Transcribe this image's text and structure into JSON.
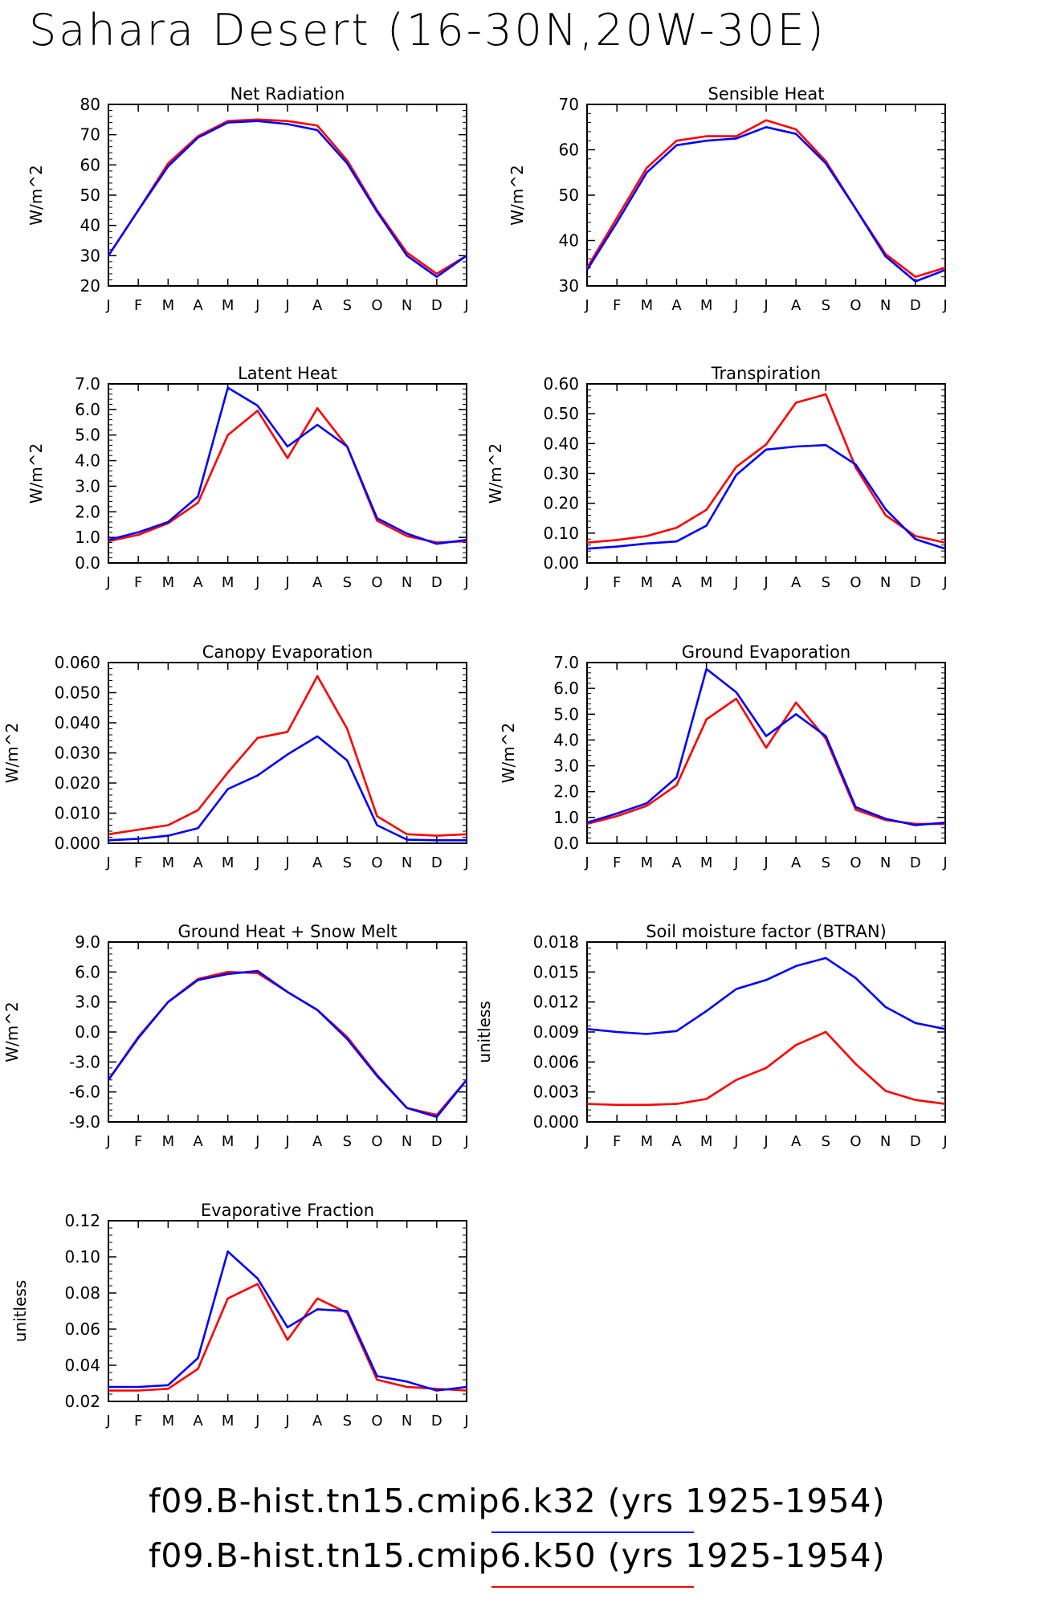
{
  "title": "Sahara Desert (16-30N,20W-30E)",
  "legend": [
    {
      "label": "f09.B-hist.tn15.cmip6.k32 (yrs 1925-1954)",
      "color": "#0000ff"
    },
    {
      "label": "f09.B-hist.tn15.cmip6.k50 (yrs 1925-1954)",
      "color": "#ff0000"
    }
  ],
  "chart_data": [
    {
      "type": "line",
      "title": "Net Radiation",
      "xlabel": "",
      "ylabel": "W/m^2",
      "categories": [
        "J",
        "F",
        "M",
        "A",
        "M",
        "J",
        "J",
        "A",
        "S",
        "O",
        "N",
        "D",
        "J"
      ],
      "ylim": [
        20,
        80
      ],
      "yticks": [
        "20",
        "30",
        "40",
        "50",
        "60",
        "70",
        "80"
      ],
      "series": [
        {
          "color": "#ff0000",
          "values": [
            30,
            45,
            60.5,
            69.5,
            74.5,
            75,
            74.5,
            73,
            61.5,
            45,
            31,
            24,
            30
          ]
        },
        {
          "color": "#0000ff",
          "values": [
            30,
            45,
            59.5,
            69,
            74,
            74.5,
            73.5,
            71.5,
            60.5,
            44.5,
            30,
            23,
            30
          ]
        }
      ]
    },
    {
      "type": "line",
      "title": "Sensible Heat",
      "xlabel": "",
      "ylabel": "W/m^2",
      "categories": [
        "J",
        "F",
        "M",
        "A",
        "M",
        "J",
        "J",
        "A",
        "S",
        "O",
        "N",
        "D",
        "J"
      ],
      "ylim": [
        30,
        70
      ],
      "yticks": [
        "30",
        "40",
        "50",
        "60",
        "70"
      ],
      "series": [
        {
          "color": "#ff0000",
          "values": [
            34,
            45,
            56,
            62,
            63,
            63,
            66.5,
            64.5,
            57.5,
            47,
            37,
            32,
            34
          ]
        },
        {
          "color": "#0000ff",
          "values": [
            33.5,
            44,
            55,
            61,
            62,
            62.5,
            65,
            63.5,
            57,
            47,
            36.5,
            31,
            33.5
          ]
        }
      ]
    },
    {
      "type": "line",
      "title": "Latent Heat",
      "xlabel": "",
      "ylabel": "W/m^2",
      "categories": [
        "J",
        "F",
        "M",
        "A",
        "M",
        "J",
        "J",
        "A",
        "S",
        "O",
        "N",
        "D",
        "J"
      ],
      "ylim": [
        0,
        7
      ],
      "yticks": [
        "0.0",
        "1.0",
        "2.0",
        "3.0",
        "4.0",
        "5.0",
        "6.0",
        "7.0"
      ],
      "series": [
        {
          "color": "#ff0000",
          "values": [
            0.85,
            1.1,
            1.55,
            2.35,
            5.0,
            5.95,
            4.1,
            6.05,
            4.55,
            1.65,
            1.05,
            0.8,
            0.85
          ]
        },
        {
          "color": "#0000ff",
          "values": [
            0.9,
            1.2,
            1.6,
            2.6,
            6.85,
            6.15,
            4.55,
            5.4,
            4.55,
            1.75,
            1.15,
            0.75,
            0.9
          ]
        }
      ]
    },
    {
      "type": "line",
      "title": "Transpiration",
      "xlabel": "",
      "ylabel": "W/m^2",
      "categories": [
        "J",
        "F",
        "M",
        "A",
        "M",
        "J",
        "J",
        "A",
        "S",
        "O",
        "N",
        "D",
        "J"
      ],
      "ylim": [
        0,
        0.6
      ],
      "yticks": [
        "0.00",
        "0.10",
        "0.20",
        "0.30",
        "0.40",
        "0.50",
        "0.60"
      ],
      "series": [
        {
          "color": "#ff0000",
          "values": [
            0.068,
            0.077,
            0.09,
            0.118,
            0.178,
            0.322,
            0.397,
            0.537,
            0.565,
            0.32,
            0.16,
            0.09,
            0.068
          ]
        },
        {
          "color": "#0000ff",
          "values": [
            0.048,
            0.055,
            0.065,
            0.072,
            0.125,
            0.295,
            0.38,
            0.39,
            0.395,
            0.33,
            0.18,
            0.08,
            0.048
          ]
        }
      ]
    },
    {
      "type": "line",
      "title": "Canopy Evaporation",
      "xlabel": "",
      "ylabel": "W/m^2",
      "categories": [
        "J",
        "F",
        "M",
        "A",
        "M",
        "J",
        "J",
        "A",
        "S",
        "O",
        "N",
        "D",
        "J"
      ],
      "ylim": [
        0,
        0.06
      ],
      "yticks": [
        "0.000",
        "0.010",
        "0.020",
        "0.030",
        "0.040",
        "0.050",
        "0.060"
      ],
      "series": [
        {
          "color": "#ff0000",
          "values": [
            0.003,
            0.0045,
            0.006,
            0.011,
            0.0235,
            0.035,
            0.037,
            0.0555,
            0.038,
            0.009,
            0.003,
            0.0025,
            0.003
          ]
        },
        {
          "color": "#0000ff",
          "values": [
            0.001,
            0.0015,
            0.0025,
            0.005,
            0.018,
            0.0225,
            0.0295,
            0.0355,
            0.0275,
            0.006,
            0.0012,
            0.001,
            0.001
          ]
        }
      ]
    },
    {
      "type": "line",
      "title": "Ground Evaporation",
      "xlabel": "",
      "ylabel": "W/m^2",
      "categories": [
        "J",
        "F",
        "M",
        "A",
        "M",
        "J",
        "J",
        "A",
        "S",
        "O",
        "N",
        "D",
        "J"
      ],
      "ylim": [
        0,
        7
      ],
      "yticks": [
        "0.0",
        "1.0",
        "2.0",
        "3.0",
        "4.0",
        "5.0",
        "6.0",
        "7.0"
      ],
      "series": [
        {
          "color": "#ff0000",
          "values": [
            0.75,
            1.05,
            1.45,
            2.25,
            4.8,
            5.6,
            3.7,
            5.45,
            4.05,
            1.3,
            0.9,
            0.75,
            0.75
          ]
        },
        {
          "color": "#0000ff",
          "values": [
            0.8,
            1.15,
            1.55,
            2.55,
            6.75,
            5.85,
            4.15,
            5.0,
            4.15,
            1.4,
            0.95,
            0.7,
            0.8
          ]
        }
      ]
    },
    {
      "type": "line",
      "title": "Ground Heat + Snow Melt",
      "xlabel": "",
      "ylabel": "W/m^2",
      "categories": [
        "J",
        "F",
        "M",
        "A",
        "M",
        "J",
        "J",
        "A",
        "S",
        "O",
        "N",
        "D",
        "J"
      ],
      "ylim": [
        -9,
        9
      ],
      "yticks": [
        "-9.0",
        "-6.0",
        "-3.0",
        "0.0",
        "3.0",
        "6.0",
        "9.0"
      ],
      "series": [
        {
          "color": "#ff0000",
          "values": [
            -4.8,
            -0.5,
            3.0,
            5.3,
            6.0,
            5.9,
            4.0,
            2.2,
            -0.5,
            -4.3,
            -7.6,
            -8.3,
            -4.8
          ]
        },
        {
          "color": "#0000ff",
          "values": [
            -4.8,
            -0.6,
            3.0,
            5.2,
            5.8,
            6.1,
            4.0,
            2.2,
            -0.7,
            -4.4,
            -7.6,
            -8.5,
            -4.8
          ]
        }
      ]
    },
    {
      "type": "line",
      "title": "Soil moisture factor (BTRAN)",
      "xlabel": "",
      "ylabel": "unitless",
      "categories": [
        "J",
        "F",
        "M",
        "A",
        "M",
        "J",
        "J",
        "A",
        "S",
        "O",
        "N",
        "D",
        "J"
      ],
      "ylim": [
        0,
        0.018
      ],
      "yticks": [
        "0.000",
        "0.003",
        "0.006",
        "0.009",
        "0.012",
        "0.015",
        "0.018"
      ],
      "series": [
        {
          "color": "#ff0000",
          "values": [
            0.0018,
            0.0017,
            0.0017,
            0.0018,
            0.0023,
            0.0042,
            0.0054,
            0.0077,
            0.009,
            0.0058,
            0.0031,
            0.0022,
            0.0018
          ]
        },
        {
          "color": "#0000ff",
          "values": [
            0.0093,
            0.009,
            0.0088,
            0.0091,
            0.0111,
            0.0133,
            0.0142,
            0.0156,
            0.0164,
            0.0144,
            0.0115,
            0.0099,
            0.0093
          ]
        }
      ]
    },
    {
      "type": "line",
      "title": "Evaporative Fraction",
      "xlabel": "",
      "ylabel": "unitless",
      "categories": [
        "J",
        "F",
        "M",
        "A",
        "M",
        "J",
        "J",
        "A",
        "S",
        "O",
        "N",
        "D",
        "J"
      ],
      "ylim": [
        0.02,
        0.12
      ],
      "yticks": [
        "0.02",
        "0.04",
        "0.06",
        "0.08",
        "0.10",
        "0.12"
      ],
      "series": [
        {
          "color": "#ff0000",
          "values": [
            0.026,
            0.026,
            0.027,
            0.038,
            0.077,
            0.085,
            0.054,
            0.077,
            0.069,
            0.032,
            0.028,
            0.027,
            0.026
          ]
        },
        {
          "color": "#0000ff",
          "values": [
            0.028,
            0.028,
            0.029,
            0.044,
            0.103,
            0.088,
            0.061,
            0.071,
            0.07,
            0.034,
            0.031,
            0.026,
            0.028
          ]
        }
      ]
    }
  ]
}
